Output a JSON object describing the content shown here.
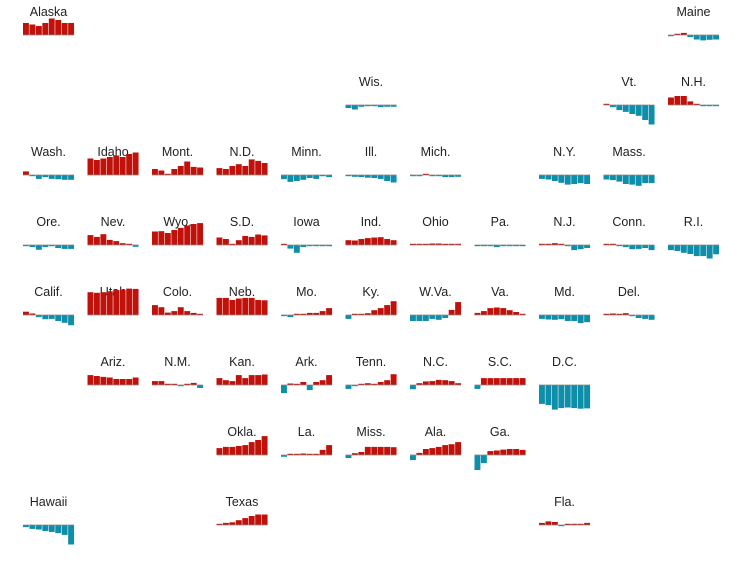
{
  "chart_data": {
    "type": "bar",
    "layout": "state-tile-grid",
    "bars_per_state": 8,
    "colors": {
      "positive": "#c0120a",
      "negative": "#0f8eaa",
      "baseline": "#888888"
    },
    "value_range": [
      -10,
      10
    ],
    "states": [
      {
        "name": "Alaska",
        "col": 0,
        "row": 0,
        "values": [
          4,
          3.5,
          3,
          4,
          5.5,
          5,
          4,
          4
        ]
      },
      {
        "name": "Maine",
        "col": 10,
        "row": 0,
        "values": [
          -0.3,
          0.3,
          0.7,
          -0.7,
          -1.5,
          -1.8,
          -1.6,
          -1.5
        ]
      },
      {
        "name": "Wis.",
        "col": 5,
        "row": 1,
        "values": [
          -1,
          -1.5,
          -0.6,
          -0.3,
          -0.3,
          -0.7,
          -0.6,
          -0.6
        ]
      },
      {
        "name": "Vt.",
        "col": 9,
        "row": 1,
        "values": [
          0.3,
          -0.7,
          -1.7,
          -2.3,
          -3,
          -3.6,
          -5,
          -6.5
        ]
      },
      {
        "name": "N.H.",
        "col": 10,
        "row": 1,
        "values": [
          2.5,
          3,
          3,
          1.2,
          0.3,
          -0.3,
          -0.3,
          -0.3
        ]
      },
      {
        "name": "Wash.",
        "col": 0,
        "row": 2,
        "values": [
          1.2,
          -0.3,
          -1.3,
          -0.7,
          -1.3,
          -1.4,
          -1.6,
          -1.6
        ]
      },
      {
        "name": "Idaho",
        "col": 1,
        "row": 2,
        "values": [
          5.5,
          5,
          5.5,
          6,
          6.5,
          6,
          7,
          7.5
        ]
      },
      {
        "name": "Mont.",
        "col": 2,
        "row": 2,
        "values": [
          2,
          1.5,
          0.2,
          2,
          3,
          4.5,
          2.7,
          2.5
        ]
      },
      {
        "name": "N.D.",
        "col": 3,
        "row": 2,
        "values": [
          2.3,
          2,
          3,
          3.6,
          3,
          5.2,
          4.7,
          4
        ]
      },
      {
        "name": "Minn.",
        "col": 4,
        "row": 2,
        "values": [
          -1.4,
          -2.3,
          -2,
          -1.6,
          -1,
          -1.3,
          -0.3,
          -0.7
        ]
      },
      {
        "name": "Ill.",
        "col": 5,
        "row": 2,
        "values": [
          -0.3,
          -0.6,
          -0.7,
          -0.9,
          -1,
          -1.3,
          -2,
          -2.5
        ]
      },
      {
        "name": "Mich.",
        "col": 6,
        "row": 2,
        "values": [
          -0.2,
          -0.3,
          0.2,
          -0.3,
          -0.4,
          -0.7,
          -0.7,
          -0.6
        ]
      },
      {
        "name": "N.Y.",
        "col": 8,
        "row": 2,
        "values": [
          -1.3,
          -1.5,
          -2,
          -2.6,
          -3.2,
          -3,
          -2.7,
          -3
        ]
      },
      {
        "name": "Mass.",
        "col": 9,
        "row": 2,
        "values": [
          -1.5,
          -1.7,
          -2.2,
          -3,
          -3.2,
          -3.6,
          -2.7,
          -2.7
        ]
      },
      {
        "name": "Ore.",
        "col": 0,
        "row": 3,
        "values": [
          -0.3,
          -0.7,
          -1.6,
          -0.7,
          -0.4,
          -1,
          -1.3,
          -1.3
        ]
      },
      {
        "name": "Nev.",
        "col": 1,
        "row": 3,
        "values": [
          3.3,
          2.7,
          3.6,
          1.7,
          1.3,
          0.6,
          0.4,
          -0.6
        ]
      },
      {
        "name": "Wyo.",
        "col": 2,
        "row": 3,
        "values": [
          4.5,
          4.6,
          4,
          5,
          5.7,
          6.5,
          7,
          7.3
        ]
      },
      {
        "name": "S.D.",
        "col": 3,
        "row": 3,
        "values": [
          2.5,
          2,
          0.4,
          1.6,
          3,
          2.7,
          3.5,
          3.2
        ]
      },
      {
        "name": "Iowa",
        "col": 4,
        "row": 3,
        "values": [
          0.3,
          -1.2,
          -2.6,
          -0.7,
          -0.3,
          -0.3,
          -0.3,
          -0.3
        ]
      },
      {
        "name": "Ind.",
        "col": 5,
        "row": 3,
        "values": [
          1.6,
          1.5,
          2,
          2.3,
          2.5,
          2.6,
          2,
          1.6
        ]
      },
      {
        "name": "Ohio",
        "col": 6,
        "row": 3,
        "values": [
          0.2,
          0.3,
          0.3,
          0.5,
          0.5,
          0.3,
          0.4,
          0.3
        ]
      },
      {
        "name": "Pa.",
        "col": 7,
        "row": 3,
        "values": [
          -0.3,
          -0.3,
          -0.3,
          -0.7,
          -0.3,
          -0.3,
          -0.2,
          -0.3
        ]
      },
      {
        "name": "N.J.",
        "col": 8,
        "row": 3,
        "values": [
          0.3,
          0.4,
          0.6,
          0.3,
          -0.4,
          -1.7,
          -1.4,
          -1
        ]
      },
      {
        "name": "Conn.",
        "col": 9,
        "row": 3,
        "values": [
          0.3,
          0.3,
          -0.4,
          -0.7,
          -1.4,
          -1.3,
          -1,
          -1.7
        ]
      },
      {
        "name": "R.I.",
        "col": 10,
        "row": 3,
        "values": [
          -1.7,
          -2,
          -2.6,
          -3,
          -3.7,
          -3.7,
          -4.5,
          -3.1
        ]
      },
      {
        "name": "Calif.",
        "col": 0,
        "row": 4,
        "values": [
          1.1,
          0.5,
          -0.7,
          -1.4,
          -1.3,
          -2,
          -2.6,
          -3.4
        ]
      },
      {
        "name": "Utah",
        "col": 1,
        "row": 4,
        "values": [
          7.6,
          7.4,
          7.6,
          7.9,
          8.3,
          8.4,
          8.8,
          8.7
        ]
      },
      {
        "name": "Colo.",
        "col": 2,
        "row": 4,
        "values": [
          3.3,
          2.6,
          0.8,
          1.3,
          2.6,
          1.3,
          0.7,
          0.3
        ]
      },
      {
        "name": "Neb.",
        "col": 3,
        "row": 4,
        "values": [
          5.7,
          5.7,
          5,
          5.5,
          5.7,
          5.7,
          5,
          4.9
        ]
      },
      {
        "name": "Mo.",
        "col": 4,
        "row": 4,
        "values": [
          -0.3,
          -0.7,
          0.3,
          0.3,
          0.7,
          0.7,
          1.3,
          2.3
        ]
      },
      {
        "name": "Ky.",
        "col": 5,
        "row": 4,
        "values": [
          -1.3,
          0.3,
          0.3,
          0.6,
          1.6,
          2.3,
          3.3,
          4.6
        ]
      },
      {
        "name": "W.Va.",
        "col": 6,
        "row": 4,
        "values": [
          -2,
          -2,
          -2,
          -1.3,
          -1.6,
          -1,
          1.7,
          4.3
        ]
      },
      {
        "name": "Va.",
        "col": 7,
        "row": 4,
        "values": [
          0.7,
          1.3,
          2.3,
          2.5,
          2.3,
          1.6,
          1,
          0.3
        ]
      },
      {
        "name": "Md.",
        "col": 8,
        "row": 4,
        "values": [
          -1.3,
          -1.5,
          -1.6,
          -1.4,
          -2,
          -2,
          -2.7,
          -2.4
        ]
      },
      {
        "name": "Del.",
        "col": 9,
        "row": 4,
        "values": [
          0.3,
          0.5,
          0.3,
          0.6,
          -0.3,
          -1,
          -1.3,
          -1.6
        ]
      },
      {
        "name": "Ariz.",
        "col": 1,
        "row": 5,
        "values": [
          3.3,
          3,
          2.7,
          2.5,
          2,
          2,
          2,
          2.5
        ]
      },
      {
        "name": "N.M.",
        "col": 2,
        "row": 5,
        "values": [
          1.3,
          1.3,
          0.4,
          0,
          -0.3,
          0.3,
          0.7,
          -1
        ]
      },
      {
        "name": "Kan.",
        "col": 3,
        "row": 5,
        "values": [
          2.3,
          1.6,
          1.3,
          3.3,
          2.3,
          3.3,
          3.3,
          3.5
        ]
      },
      {
        "name": "Ark.",
        "col": 4,
        "row": 5,
        "values": [
          -2.7,
          0.5,
          0.4,
          1,
          -1.7,
          1,
          1.6,
          3.3
        ]
      },
      {
        "name": "Tenn.",
        "col": 5,
        "row": 5,
        "values": [
          -1.3,
          -0.3,
          0.3,
          0.6,
          0.3,
          1,
          1.6,
          3.6
        ]
      },
      {
        "name": "N.C.",
        "col": 6,
        "row": 5,
        "values": [
          -1.4,
          0.6,
          1.2,
          1.3,
          1.7,
          1.6,
          1.3,
          0.6
        ]
      },
      {
        "name": "S.C.",
        "col": 7,
        "row": 5,
        "values": [
          -1.3,
          2.3,
          2.3,
          2.3,
          2.3,
          2.3,
          2.3,
          2.3
        ]
      },
      {
        "name": "D.C.",
        "col": 8,
        "row": 5,
        "values": [
          -6.3,
          -6.7,
          -8.2,
          -7.7,
          -7.5,
          -7.7,
          -7.9,
          -7.8
        ]
      },
      {
        "name": "Okla.",
        "col": 3,
        "row": 6,
        "values": [
          2.3,
          2.7,
          2.7,
          3,
          3.3,
          4.3,
          5,
          6.3
        ]
      },
      {
        "name": "La.",
        "col": 4,
        "row": 6,
        "values": [
          -0.6,
          0.3,
          0.3,
          0.5,
          0.3,
          0.3,
          1.7,
          3.3
        ]
      },
      {
        "name": "Miss.",
        "col": 5,
        "row": 6,
        "values": [
          -1,
          0.6,
          1,
          2.7,
          2.7,
          2.7,
          2.7,
          2.6
        ]
      },
      {
        "name": "Ala.",
        "col": 6,
        "row": 6,
        "values": [
          -1.7,
          0.7,
          2,
          2.3,
          2.7,
          3.3,
          3.6,
          4.3
        ]
      },
      {
        "name": "Ga.",
        "col": 7,
        "row": 6,
        "values": [
          -5,
          -2.7,
          1.3,
          1.5,
          1.8,
          2,
          2,
          1.7
        ]
      },
      {
        "name": "Hawaii",
        "col": 0,
        "row": 7,
        "values": [
          -0.7,
          -1.3,
          -1.5,
          -2,
          -2.3,
          -2.7,
          -3.3,
          -6.5
        ]
      },
      {
        "name": "Texas",
        "col": 3,
        "row": 7,
        "values": [
          0.3,
          0.7,
          0.9,
          1.6,
          2.3,
          3,
          3.5,
          3.5
        ]
      },
      {
        "name": "Fla.",
        "col": 8,
        "row": 7,
        "values": [
          0.7,
          1.2,
          1,
          -0.3,
          0.3,
          0.3,
          0.3,
          0.7
        ]
      }
    ]
  }
}
